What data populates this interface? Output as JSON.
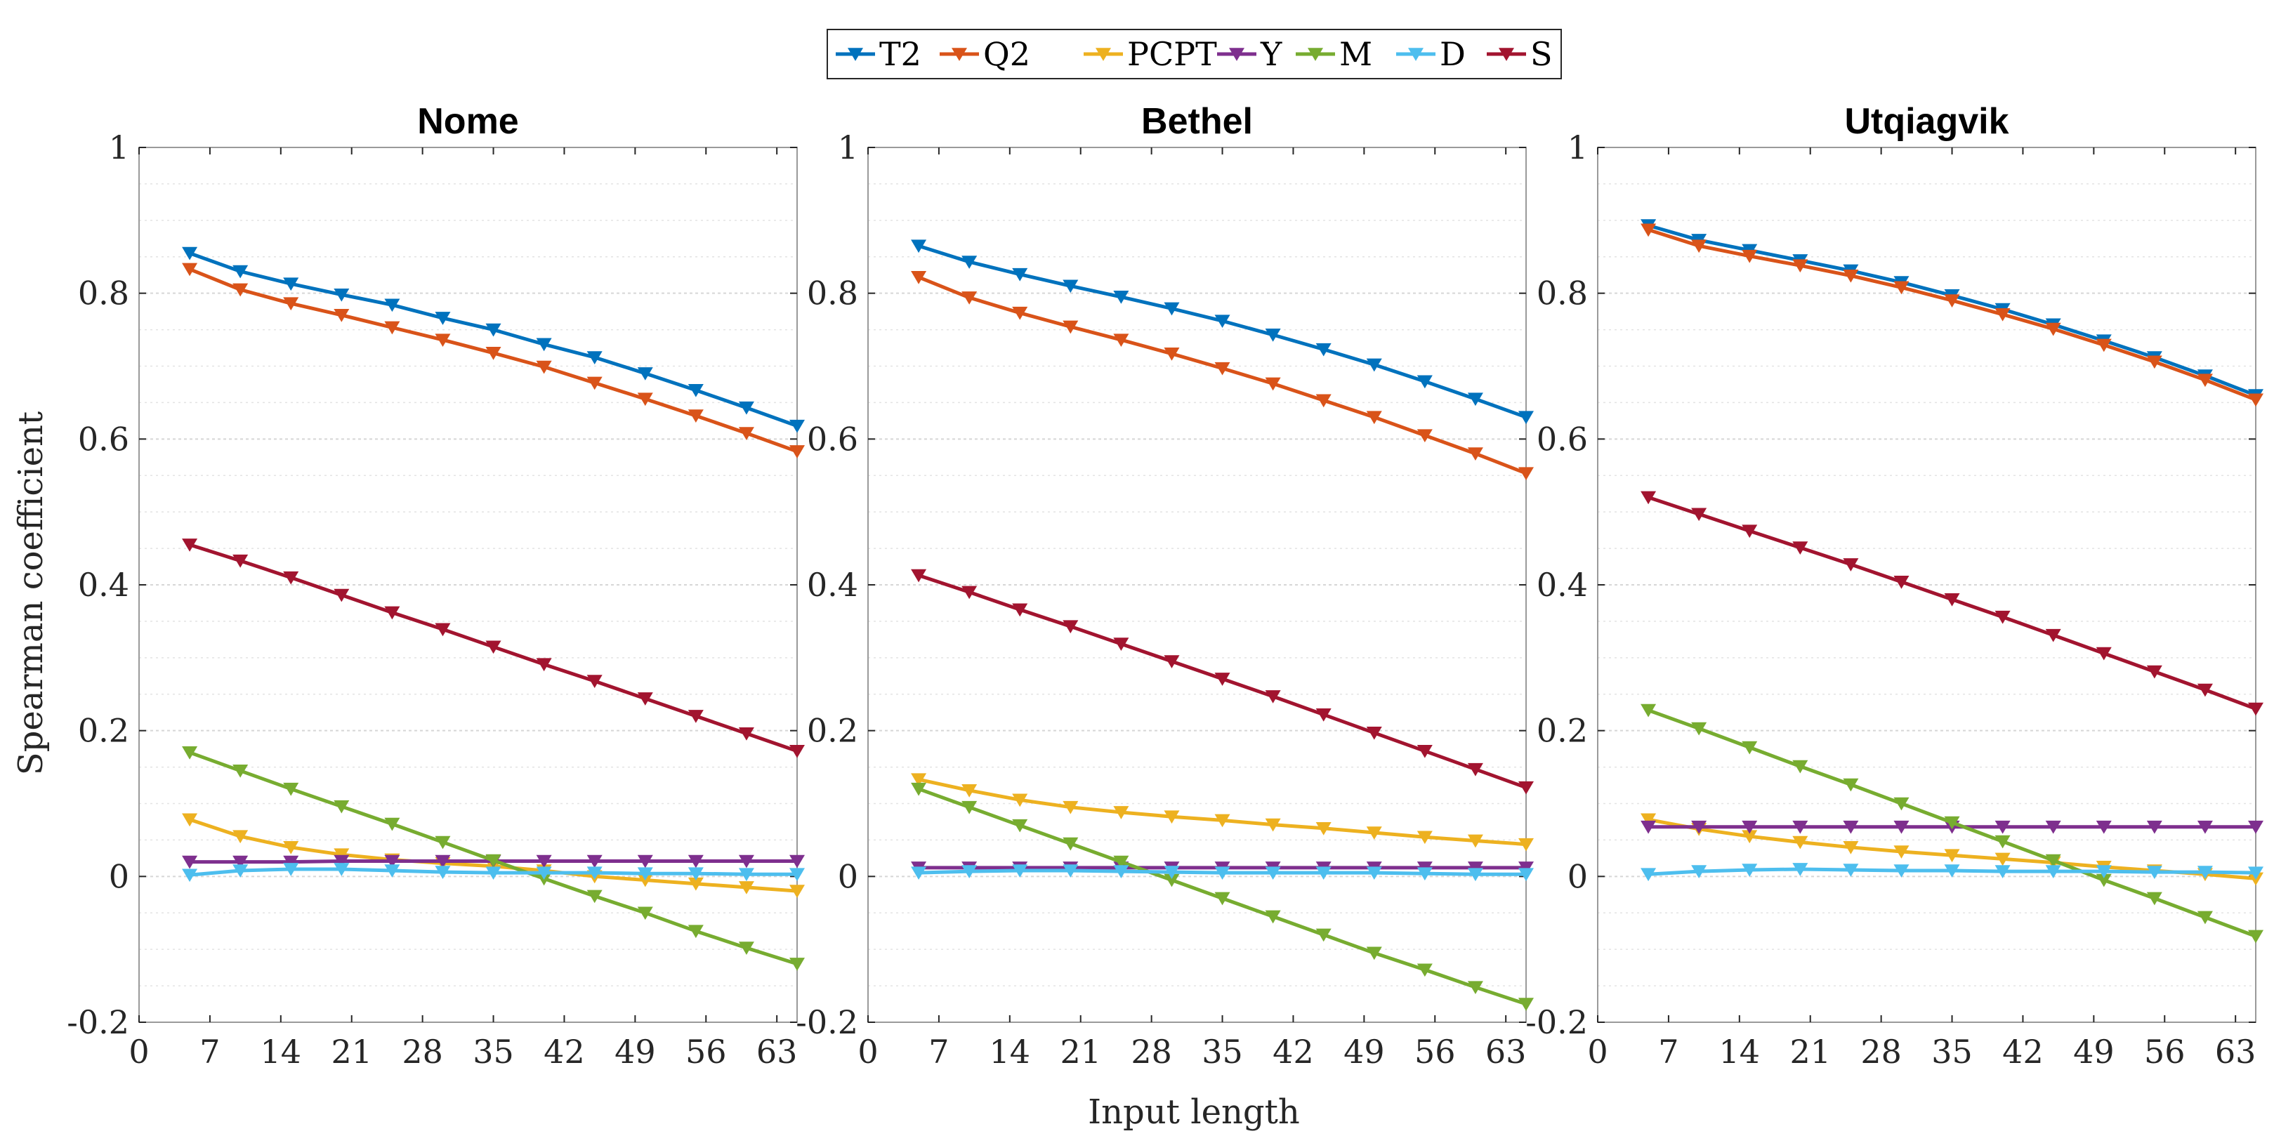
{
  "chart_data": {
    "type": "line",
    "ylabel": "Spearman coefficient",
    "xlabel": "Input length",
    "xlim": [
      0,
      65
    ],
    "ylim": [
      -0.2,
      1
    ],
    "xticks": [
      0,
      7,
      14,
      21,
      28,
      35,
      42,
      49,
      56,
      63
    ],
    "xtick_labels": [
      "0",
      "7",
      "14",
      "21",
      "28",
      "35",
      "42",
      "49",
      "56",
      "63"
    ],
    "yticks": [
      -0.2,
      0,
      0.2,
      0.4,
      0.6,
      0.8,
      1
    ],
    "ytick_labels": [
      "-0.2",
      "0",
      "0.2",
      "0.4",
      "0.6",
      "0.8",
      "1"
    ],
    "x": [
      5,
      10,
      15,
      20,
      25,
      30,
      35,
      40,
      45,
      50,
      55,
      60,
      65
    ],
    "grid": true,
    "legend": {
      "placement": "top-center",
      "entries": [
        {
          "name": "T2",
          "color": "#0072BD"
        },
        {
          "name": "Q2",
          "color": "#D95319"
        },
        {
          "name": "PCPT",
          "color": "#EDB120"
        },
        {
          "name": "Y",
          "color": "#7E2F8E"
        },
        {
          "name": "M",
          "color": "#77AC30"
        },
        {
          "name": "D",
          "color": "#4DBEEE"
        },
        {
          "name": "S",
          "color": "#A2142F"
        }
      ]
    },
    "panels": [
      {
        "title": "Nome",
        "series": [
          {
            "name": "T2",
            "values": [
              0.855,
              0.83,
              0.813,
              0.798,
              0.784,
              0.766,
              0.75,
              0.73,
              0.712,
              0.69,
              0.667,
              0.643,
              0.618
            ]
          },
          {
            "name": "Q2",
            "values": [
              0.833,
              0.805,
              0.786,
              0.77,
              0.753,
              0.736,
              0.718,
              0.699,
              0.677,
              0.655,
              0.632,
              0.608,
              0.583
            ]
          },
          {
            "name": "PCPT",
            "values": [
              0.078,
              0.055,
              0.04,
              0.03,
              0.023,
              0.018,
              0.014,
              0.008,
              0.0,
              -0.005,
              -0.01,
              -0.015,
              -0.02
            ]
          },
          {
            "name": "Y",
            "values": [
              0.02,
              0.02,
              0.02,
              0.021,
              0.021,
              0.021,
              0.021,
              0.021,
              0.021,
              0.021,
              0.021,
              0.021,
              0.021
            ]
          },
          {
            "name": "M",
            "values": [
              0.17,
              0.145,
              0.12,
              0.096,
              0.072,
              0.047,
              0.022,
              -0.003,
              -0.027,
              -0.05,
              -0.075,
              -0.098,
              -0.12
            ]
          },
          {
            "name": "D",
            "values": [
              0.002,
              0.008,
              0.01,
              0.01,
              0.008,
              0.006,
              0.005,
              0.005,
              0.005,
              0.004,
              0.004,
              0.003,
              0.003
            ]
          },
          {
            "name": "S",
            "values": [
              0.455,
              0.433,
              0.41,
              0.386,
              0.362,
              0.339,
              0.315,
              0.291,
              0.268,
              0.244,
              0.22,
              0.196,
              0.172
            ]
          }
        ]
      },
      {
        "title": "Bethel",
        "series": [
          {
            "name": "T2",
            "values": [
              0.865,
              0.843,
              0.826,
              0.81,
              0.795,
              0.779,
              0.762,
              0.743,
              0.723,
              0.702,
              0.679,
              0.655,
              0.63
            ]
          },
          {
            "name": "Q2",
            "values": [
              0.822,
              0.794,
              0.773,
              0.754,
              0.736,
              0.717,
              0.697,
              0.676,
              0.653,
              0.63,
              0.605,
              0.58,
              0.553
            ]
          },
          {
            "name": "PCPT",
            "values": [
              0.133,
              0.118,
              0.105,
              0.095,
              0.088,
              0.082,
              0.077,
              0.071,
              0.066,
              0.06,
              0.054,
              0.049,
              0.044
            ]
          },
          {
            "name": "Y",
            "values": [
              0.012,
              0.012,
              0.012,
              0.012,
              0.012,
              0.012,
              0.012,
              0.012,
              0.012,
              0.012,
              0.012,
              0.012,
              0.012
            ]
          },
          {
            "name": "M",
            "values": [
              0.12,
              0.095,
              0.07,
              0.045,
              0.02,
              -0.005,
              -0.03,
              -0.055,
              -0.08,
              -0.105,
              -0.128,
              -0.152,
              -0.175
            ]
          },
          {
            "name": "D",
            "values": [
              0.005,
              0.007,
              0.008,
              0.008,
              0.007,
              0.006,
              0.005,
              0.005,
              0.005,
              0.005,
              0.004,
              0.003,
              0.003
            ]
          },
          {
            "name": "S",
            "values": [
              0.413,
              0.39,
              0.366,
              0.343,
              0.319,
              0.295,
              0.271,
              0.247,
              0.222,
              0.197,
              0.172,
              0.147,
              0.122
            ]
          }
        ]
      },
      {
        "title": "Utqiagvik",
        "series": [
          {
            "name": "T2",
            "values": [
              0.893,
              0.873,
              0.859,
              0.845,
              0.831,
              0.815,
              0.797,
              0.778,
              0.757,
              0.735,
              0.712,
              0.687,
              0.66
            ]
          },
          {
            "name": "Q2",
            "values": [
              0.887,
              0.865,
              0.851,
              0.838,
              0.824,
              0.808,
              0.79,
              0.771,
              0.751,
              0.729,
              0.706,
              0.681,
              0.654
            ]
          },
          {
            "name": "PCPT",
            "values": [
              0.078,
              0.065,
              0.055,
              0.047,
              0.04,
              0.034,
              0.029,
              0.024,
              0.019,
              0.013,
              0.008,
              0.003,
              -0.003
            ]
          },
          {
            "name": "Y",
            "values": [
              0.068,
              0.068,
              0.068,
              0.068,
              0.068,
              0.068,
              0.068,
              0.068,
              0.068,
              0.068,
              0.068,
              0.068,
              0.068
            ]
          },
          {
            "name": "M",
            "values": [
              0.228,
              0.203,
              0.177,
              0.151,
              0.126,
              0.1,
              0.074,
              0.048,
              0.022,
              -0.005,
              -0.03,
              -0.056,
              -0.082
            ]
          },
          {
            "name": "D",
            "values": [
              0.003,
              0.007,
              0.009,
              0.01,
              0.009,
              0.008,
              0.008,
              0.007,
              0.007,
              0.007,
              0.006,
              0.006,
              0.005
            ]
          },
          {
            "name": "S",
            "values": [
              0.52,
              0.497,
              0.474,
              0.451,
              0.428,
              0.404,
              0.38,
              0.356,
              0.331,
              0.306,
              0.281,
              0.256,
              0.23
            ]
          }
        ]
      }
    ]
  }
}
